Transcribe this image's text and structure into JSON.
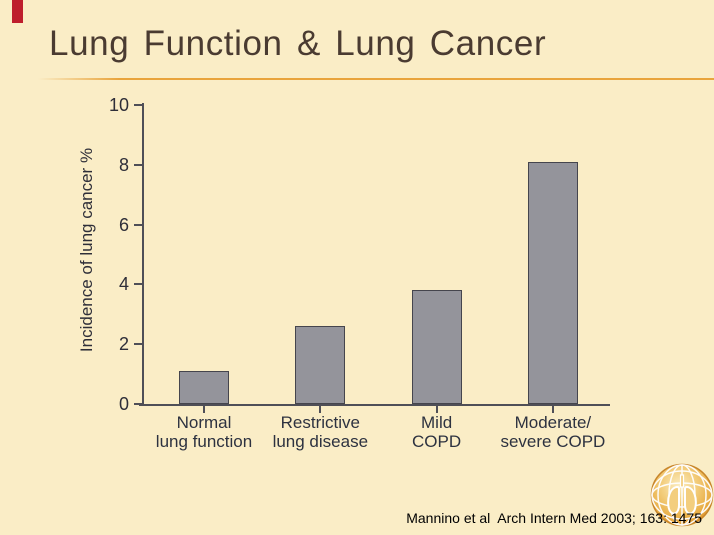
{
  "slide": {
    "title": "Lung Function & Lung Cancer",
    "citation": "Mannino et al  Arch Intern Med 2003; 163: 1475",
    "logo_name": "gold-lung-globe-logo",
    "colors": {
      "background": "#FAEDC6",
      "title_text": "#4A3B31",
      "separator_line": "#E9A43C",
      "accent_bar_red": "#BE1E2D",
      "bar_fill": "#94949B",
      "bar_border": "#45454D",
      "axis_line": "#4F4F57",
      "tick_label": "#2E2E38",
      "category_label": "#2D3240",
      "citation_text": "#000000",
      "logo_gold": "#E8AC43"
    }
  },
  "chart_data": {
    "type": "bar",
    "title": "",
    "xlabel": "",
    "ylabel": "Incidence of lung cancer %",
    "categories": [
      "Normal\nlung function",
      "Restrictive\nlung disease",
      "Mild\nCOPD",
      "Moderate/\nsevere COPD"
    ],
    "values": [
      1.1,
      2.6,
      3.8,
      8.1
    ],
    "yticks": [
      0,
      2,
      4,
      6,
      8,
      10
    ],
    "ylim": [
      0,
      10
    ],
    "grid": false,
    "legend": "none",
    "bar_color": "#94949B"
  }
}
